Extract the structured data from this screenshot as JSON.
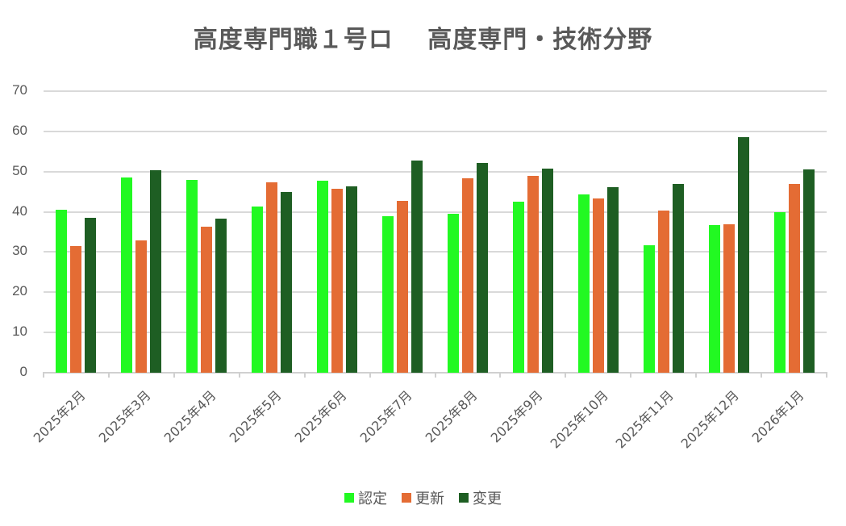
{
  "chart_data": {
    "type": "bar",
    "title": "高度専門職１号ロ　 高度専門・技術分野",
    "xlabel": "",
    "ylabel": "",
    "ylim": [
      0,
      70
    ],
    "yticks": [
      0,
      10,
      20,
      30,
      40,
      50,
      60,
      70
    ],
    "grid": true,
    "legend_position": "bottom",
    "categories": [
      "2025年2月",
      "2025年3月",
      "2025年4月",
      "2025年5月",
      "2025年6月",
      "2025年7月",
      "2025年8月",
      "2025年9月",
      "2025年10月",
      "2025年11月",
      "2025年12月",
      "2026年1月"
    ],
    "series": [
      {
        "name": "認定",
        "color": "#22f922",
        "values": [
          40.5,
          48.6,
          47.9,
          41.4,
          47.7,
          38.9,
          39.5,
          42.6,
          44.4,
          31.7,
          36.7,
          39.9
        ]
      },
      {
        "name": "更新",
        "color": "#e46c34",
        "values": [
          31.5,
          32.8,
          36.4,
          47.3,
          45.7,
          42.8,
          48.3,
          48.9,
          43.4,
          40.3,
          36.9,
          47.0
        ]
      },
      {
        "name": "変更",
        "color": "#1e5e23",
        "values": [
          38.5,
          50.4,
          38.3,
          44.9,
          46.3,
          52.8,
          52.1,
          50.7,
          46.2,
          47.0,
          58.6,
          50.6
        ]
      }
    ]
  }
}
